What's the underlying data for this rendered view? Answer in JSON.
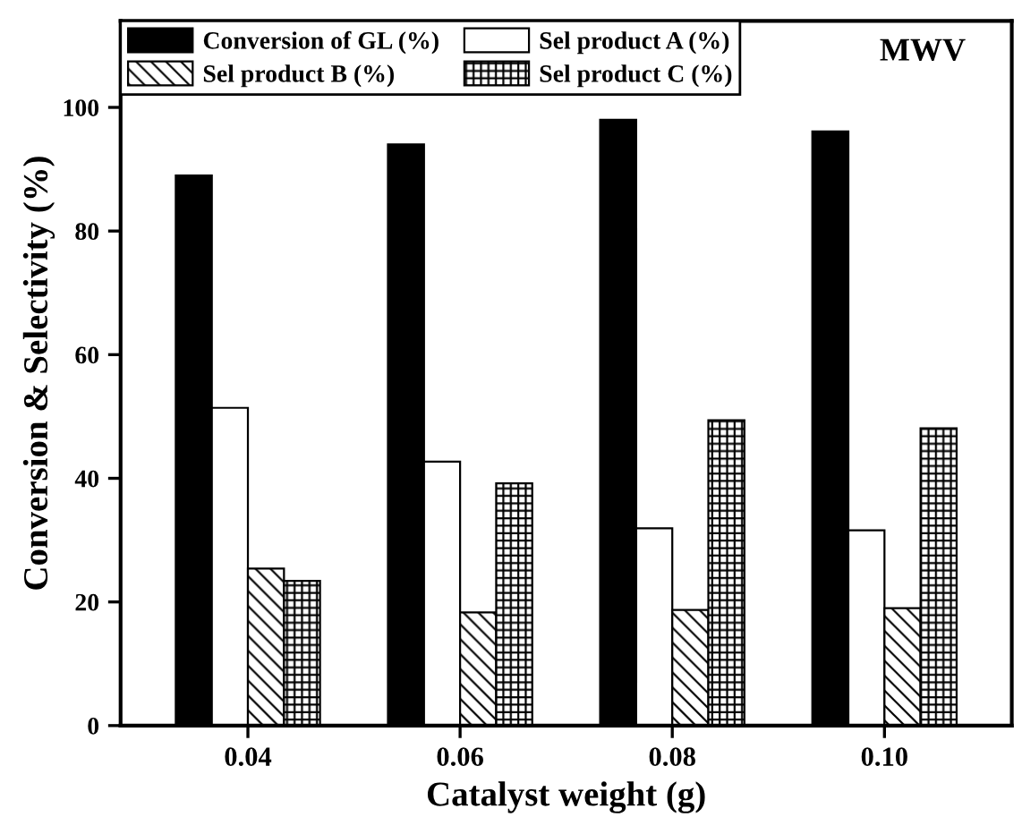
{
  "chart_data": {
    "type": "bar",
    "xlabel": "Catalyst weight (g)",
    "ylabel": "Conversion & Selectivity (%)",
    "categories": [
      "0.04",
      "0.06",
      "0.08",
      "0.10"
    ],
    "series": [
      {
        "name": "Conversion of GL (%)",
        "color": "#000000",
        "values": [
          89.0,
          94.0,
          98.0,
          96.1
        ]
      },
      {
        "name": "Sel product A (%)",
        "color": "#ffffff",
        "values": [
          51.4,
          42.7,
          31.9,
          31.6
        ]
      },
      {
        "name": "Sel product B (%)",
        "color": "#000000",
        "values": [
          25.4,
          18.3,
          18.7,
          19.0
        ]
      },
      {
        "name": "Sel product C (%)",
        "color": "#000000",
        "values": [
          23.4,
          39.2,
          49.4,
          48.1
        ]
      }
    ],
    "ylim": [
      0,
      114
    ],
    "yticks": [
      0,
      20,
      40,
      60,
      80,
      100
    ],
    "grid": false,
    "legend": "top left",
    "annotations": [
      "MWV"
    ]
  }
}
